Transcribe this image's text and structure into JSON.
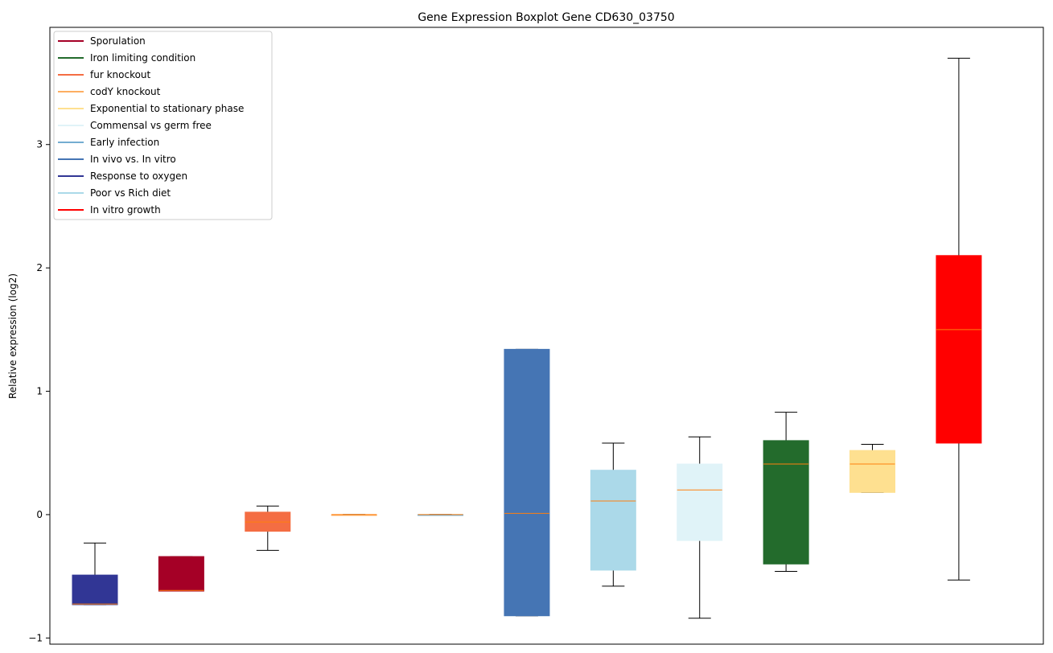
{
  "chart_data": {
    "type": "box",
    "title": "Gene Expression Boxplot Gene CD630_03750",
    "xlabel": "",
    "ylabel": "Relative expression (log2)",
    "ylim": [
      -1.05,
      3.95
    ],
    "yticks": [
      -1,
      0,
      1,
      2,
      3
    ],
    "grid": false,
    "legend_position": "upper-left",
    "legend": [
      {
        "label": "Sporulation",
        "color": "#a50026"
      },
      {
        "label": "Iron limiting condition",
        "color": "#236b2c"
      },
      {
        "label": "fur knockout",
        "color": "#f46d43"
      },
      {
        "label": "codY knockout",
        "color": "#fdae61"
      },
      {
        "label": "Exponential to stationary phase",
        "color": "#fee090"
      },
      {
        "label": "Commensal vs germ free",
        "color": "#e0f3f8"
      },
      {
        "label": "Early infection",
        "color": "#74add1"
      },
      {
        "label": "In vivo vs. In vitro",
        "color": "#4575b4"
      },
      {
        "label": "Response to oxygen",
        "color": "#313695"
      },
      {
        "label": "Poor vs Rich diet",
        "color": "#abd9e9"
      },
      {
        "label": "In vitro growth",
        "color": "#ff0000"
      }
    ],
    "median_color": "#ff7f0e",
    "boxes": [
      {
        "group": "Response to oxygen",
        "color": "#313695",
        "whisker_low": -0.73,
        "q1": -0.73,
        "median": -0.725,
        "q3": -0.49,
        "whisker_high": -0.23
      },
      {
        "group": "Sporulation",
        "color": "#a50026",
        "whisker_low": -0.62,
        "q1": -0.62,
        "median": -0.615,
        "q3": -0.34,
        "whisker_high": -0.34
      },
      {
        "group": "fur knockout",
        "color": "#f46d43",
        "whisker_low": -0.29,
        "q1": -0.135,
        "median": -0.06,
        "q3": 0.02,
        "whisker_high": 0.07
      },
      {
        "group": "codY knockout",
        "color": "#fdae61",
        "whisker_low": 0.0,
        "q1": 0.0,
        "median": 0.0,
        "q3": 0.0,
        "whisker_high": 0.0
      },
      {
        "group": "Early infection",
        "color": "#74add1",
        "whisker_low": 0.0,
        "q1": 0.0,
        "median": 0.0,
        "q3": 0.0,
        "whisker_high": 0.0
      },
      {
        "group": "In vivo vs. In vitro",
        "color": "#4575b4",
        "whisker_low": -0.82,
        "q1": -0.82,
        "median": 0.01,
        "q3": 1.34,
        "whisker_high": 1.34
      },
      {
        "group": "Poor vs Rich diet",
        "color": "#abd9e9",
        "whisker_low": -0.58,
        "q1": -0.45,
        "median": 0.11,
        "q3": 0.36,
        "whisker_high": 0.58
      },
      {
        "group": "Commensal vs germ free",
        "color": "#e0f3f8",
        "whisker_low": -0.84,
        "q1": -0.21,
        "median": 0.2,
        "q3": 0.41,
        "whisker_high": 0.63
      },
      {
        "group": "Iron limiting condition",
        "color": "#236b2c",
        "whisker_low": -0.46,
        "q1": -0.4,
        "median": 0.41,
        "q3": 0.6,
        "whisker_high": 0.83
      },
      {
        "group": "Exponential to stationary phase",
        "color": "#fee090",
        "whisker_low": 0.18,
        "q1": 0.18,
        "median": 0.41,
        "q3": 0.52,
        "whisker_high": 0.57
      },
      {
        "group": "In vitro growth",
        "color": "#ff0000",
        "whisker_low": -0.53,
        "q1": 0.58,
        "median": 1.5,
        "q3": 2.1,
        "whisker_high": 3.7
      }
    ]
  }
}
